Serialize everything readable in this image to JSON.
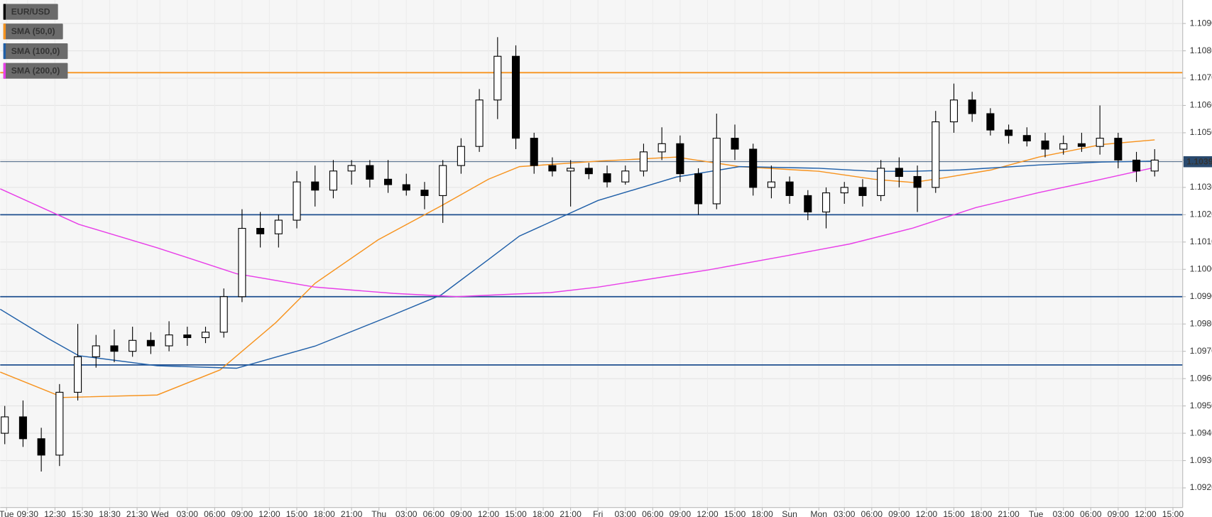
{
  "chart_data": {
    "type": "candlestick",
    "name": "EUR/USD",
    "color": "#000000",
    "x": [
      -17,
      -15,
      -13,
      -11,
      -9,
      -7,
      -5,
      -3,
      -1,
      1,
      3,
      5,
      7,
      9,
      11,
      13,
      15,
      17,
      19,
      21,
      23,
      25,
      27,
      29,
      31,
      33,
      35,
      37,
      39,
      41,
      43,
      45,
      47,
      49,
      51,
      53,
      55,
      57,
      59,
      61,
      63,
      65,
      67,
      69,
      71,
      73,
      75,
      77,
      79,
      81,
      83,
      85,
      87,
      89,
      91,
      93,
      95,
      97,
      99,
      101,
      103,
      105,
      107,
      109
    ],
    "open": [
      1.094,
      1.0946,
      1.0938,
      1.0932,
      1.0955,
      1.0968,
      1.0972,
      1.097,
      1.0974,
      1.0972,
      1.0976,
      1.0975,
      1.0977,
      1.099,
      1.1015,
      1.1013,
      1.1018,
      1.1032,
      1.1029,
      1.1036,
      1.1038,
      1.1033,
      1.1031,
      1.1029,
      1.1027,
      1.1038,
      1.1045,
      1.1062,
      1.1078,
      1.1048,
      1.1038,
      1.1036,
      1.1037,
      1.1035,
      1.1032,
      1.1036,
      1.1043,
      1.1046,
      1.1035,
      1.1024,
      1.1048,
      1.1044,
      1.103,
      1.1032,
      1.1027,
      1.1021,
      1.1028,
      1.103,
      1.1027,
      1.1037,
      1.1034,
      1.103,
      1.1054,
      1.1062,
      1.1057,
      1.1051,
      1.1049,
      1.1047,
      1.1044,
      1.1046,
      1.1045,
      1.1048,
      1.104,
      1.1036
    ],
    "high": [
      1.095,
      1.0952,
      1.0942,
      1.0958,
      1.098,
      1.0976,
      1.0978,
      1.0979,
      1.0977,
      1.0981,
      1.0979,
      1.0979,
      1.0993,
      1.1022,
      1.1021,
      1.102,
      1.1036,
      1.1038,
      1.104,
      1.104,
      1.104,
      1.104,
      1.1035,
      1.1032,
      1.104,
      1.1048,
      1.1066,
      1.1085,
      1.1082,
      1.105,
      1.1041,
      1.104,
      1.1039,
      1.1038,
      1.1038,
      1.1046,
      1.1052,
      1.1049,
      1.1037,
      1.1057,
      1.1053,
      1.1046,
      1.1038,
      1.1034,
      1.1029,
      1.103,
      1.1032,
      1.1033,
      1.104,
      1.1041,
      1.1038,
      1.1058,
      1.1068,
      1.1065,
      1.1059,
      1.1053,
      1.1052,
      1.105,
      1.1049,
      1.105,
      1.106,
      1.105,
      1.1043,
      1.1044
    ],
    "low": [
      1.0936,
      1.0935,
      1.0926,
      1.0928,
      1.0952,
      1.0964,
      1.0966,
      1.0968,
      1.0969,
      1.097,
      1.0972,
      1.0973,
      1.0975,
      1.0988,
      1.1008,
      1.1008,
      1.1015,
      1.1023,
      1.1026,
      1.1031,
      1.103,
      1.1028,
      1.1027,
      1.1022,
      1.1017,
      1.1035,
      1.1043,
      1.1055,
      1.1044,
      1.1035,
      1.1034,
      1.1023,
      1.1033,
      1.103,
      1.1031,
      1.1034,
      1.104,
      1.1032,
      1.102,
      1.1022,
      1.104,
      1.1027,
      1.1026,
      1.1024,
      1.1018,
      1.1015,
      1.1024,
      1.1023,
      1.1025,
      1.103,
      1.1021,
      1.1028,
      1.105,
      1.1054,
      1.1049,
      1.1046,
      1.1045,
      1.1041,
      1.1042,
      1.1043,
      1.1042,
      1.1037,
      1.1032,
      1.1034
    ],
    "close": [
      1.0946,
      1.0938,
      1.0932,
      1.0955,
      1.0968,
      1.0972,
      1.097,
      1.0974,
      1.0972,
      1.0976,
      1.0975,
      1.0977,
      1.099,
      1.1015,
      1.1013,
      1.1018,
      1.1032,
      1.1029,
      1.1036,
      1.1038,
      1.1033,
      1.1031,
      1.1029,
      1.1027,
      1.1038,
      1.1045,
      1.1062,
      1.1078,
      1.1048,
      1.1038,
      1.1036,
      1.1037,
      1.1035,
      1.1032,
      1.1036,
      1.1043,
      1.1046,
      1.1035,
      1.1024,
      1.1048,
      1.1044,
      1.103,
      1.1032,
      1.1027,
      1.1021,
      1.1028,
      1.103,
      1.1027,
      1.1037,
      1.1034,
      1.103,
      1.1054,
      1.1062,
      1.1057,
      1.1051,
      1.1049,
      1.1047,
      1.1044,
      1.1046,
      1.1045,
      1.1048,
      1.104,
      1.1036,
      1.104
    ],
    "overlays": [
      {
        "name": "SMA (50,0)",
        "color": "#f7931e",
        "x": [
          -17.5,
          -10.6,
          -0.3,
          6.6,
          12.7,
          17.0,
          23.9,
          30.8,
          36.0,
          39.4,
          48.0,
          56.6,
          63.5,
          72.2,
          78.2,
          82.5,
          85.9,
          91.1,
          96.3,
          103.2,
          109.0
        ],
        "values": [
          1.09624,
          1.09531,
          1.0954,
          1.09632,
          1.09805,
          1.09949,
          1.10108,
          1.10232,
          1.1033,
          1.10376,
          1.10396,
          1.10411,
          1.10376,
          1.10359,
          1.1033,
          1.10318,
          1.10335,
          1.10364,
          1.10411,
          1.10457,
          1.10474
        ]
      },
      {
        "name": "SMA (100,0)",
        "color": "#1f5fa8",
        "x": [
          -17.5,
          -12.3,
          -8.9,
          -0.3,
          8.4,
          17.0,
          25.6,
          30.8,
          36.0,
          39.4,
          48.0,
          56.6,
          63.5,
          72.2,
          78.2,
          82.5,
          87.7,
          96.3,
          103.2,
          109.0
        ],
        "values": [
          1.09854,
          1.09748,
          1.09684,
          1.09647,
          1.09638,
          1.09719,
          1.09834,
          1.09906,
          1.10036,
          1.10122,
          1.10252,
          1.10338,
          1.10376,
          1.1037,
          1.10359,
          1.10359,
          1.10364,
          1.10382,
          1.10393,
          1.10396
        ]
      },
      {
        "name": "SMA (200,0)",
        "color": "#e83ee8",
        "x": [
          -17.5,
          -8.9,
          -0.3,
          8.4,
          17.0,
          25.6,
          32.5,
          38.5,
          42.8,
          48.0,
          60.1,
          68.7,
          75.6,
          82.5,
          89.4,
          96.3,
          103.2,
          109.0
        ],
        "values": [
          1.10295,
          1.10165,
          1.10079,
          1.09984,
          1.09935,
          1.09912,
          1.099,
          1.09909,
          1.09915,
          1.09935,
          1.09998,
          1.1005,
          1.10093,
          1.10151,
          1.10226,
          1.10281,
          1.1033,
          1.10373
        ]
      }
    ],
    "levels": [
      {
        "value": 1.1072,
        "color": "#f7931e"
      },
      {
        "value": 1.102,
        "color": "#1f4f8f"
      },
      {
        "value": 1.099,
        "color": "#1f4f8f"
      },
      {
        "value": 1.0965,
        "color": "#1f4f8f"
      }
    ],
    "current_price": 1.10394,
    "current_price_color": "#2a4a6e",
    "xlim": [
      -17.5,
      112.07
    ],
    "ylim": [
      1.09128,
      1.10986
    ],
    "grid": true,
    "yticks": [
      {
        "value": 1.092,
        "label": "1.0920"
      },
      {
        "value": 1.093,
        "label": "1.0930"
      },
      {
        "value": 1.094,
        "label": "1.0940"
      },
      {
        "value": 1.095,
        "label": "1.0950"
      },
      {
        "value": 1.096,
        "label": "1.0960"
      },
      {
        "value": 1.097,
        "label": "1.0970"
      },
      {
        "value": 1.098,
        "label": "1.0980"
      },
      {
        "value": 1.099,
        "label": "1.0990"
      },
      {
        "value": 1.1,
        "label": "1.1000"
      },
      {
        "value": 1.101,
        "label": "1.1010"
      },
      {
        "value": 1.102,
        "label": "1.1020"
      },
      {
        "value": 1.103,
        "label": "1.1030"
      },
      {
        "value": 1.104,
        "label": "1.1040"
      },
      {
        "value": 1.105,
        "label": "1.1050"
      },
      {
        "value": 1.106,
        "label": "1.1060"
      },
      {
        "value": 1.107,
        "label": "1.1070"
      },
      {
        "value": 1.108,
        "label": "1.1080"
      },
      {
        "value": 1.109,
        "label": "1.1090"
      }
    ],
    "xticks": [
      {
        "value": -16.8,
        "label": "Tue"
      },
      {
        "value": -14.5,
        "label": "09:30"
      },
      {
        "value": -11.5,
        "label": "12:30"
      },
      {
        "value": -8.5,
        "label": "15:30"
      },
      {
        "value": -5.5,
        "label": "18:30"
      },
      {
        "value": -2.5,
        "label": "21:30"
      },
      {
        "value": 0,
        "label": "Wed"
      },
      {
        "value": 3,
        "label": "03:00"
      },
      {
        "value": 6,
        "label": "06:00"
      },
      {
        "value": 9,
        "label": "09:00"
      },
      {
        "value": 12,
        "label": "12:00"
      },
      {
        "value": 15,
        "label": "15:00"
      },
      {
        "value": 18,
        "label": "18:00"
      },
      {
        "value": 21,
        "label": "21:00"
      },
      {
        "value": 24,
        "label": "Thu"
      },
      {
        "value": 27,
        "label": "03:00"
      },
      {
        "value": 30,
        "label": "06:00"
      },
      {
        "value": 33,
        "label": "09:00"
      },
      {
        "value": 36,
        "label": "12:00"
      },
      {
        "value": 39,
        "label": "15:00"
      },
      {
        "value": 42,
        "label": "18:00"
      },
      {
        "value": 45,
        "label": "21:00"
      },
      {
        "value": 48,
        "label": "Fri"
      },
      {
        "value": 51,
        "label": "03:00"
      },
      {
        "value": 54,
        "label": "06:00"
      },
      {
        "value": 57,
        "label": "09:00"
      },
      {
        "value": 60,
        "label": "12:00"
      },
      {
        "value": 63,
        "label": "15:00"
      },
      {
        "value": 66,
        "label": "18:00"
      },
      {
        "value": 69,
        "label": "Sun"
      },
      {
        "value": 72.2,
        "label": "Mon"
      },
      {
        "value": 75,
        "label": "03:00"
      },
      {
        "value": 78,
        "label": "06:00"
      },
      {
        "value": 81,
        "label": "09:00"
      },
      {
        "value": 84,
        "label": "12:00"
      },
      {
        "value": 87,
        "label": "15:00"
      },
      {
        "value": 90,
        "label": "18:00"
      },
      {
        "value": 93,
        "label": "21:00"
      },
      {
        "value": 96,
        "label": "Tue"
      },
      {
        "value": 99,
        "label": "03:00"
      },
      {
        "value": 102,
        "label": "06:00"
      },
      {
        "value": 105,
        "label": "09:00"
      },
      {
        "value": 108,
        "label": "12:00"
      },
      {
        "value": 111,
        "label": "15:00"
      }
    ]
  }
}
